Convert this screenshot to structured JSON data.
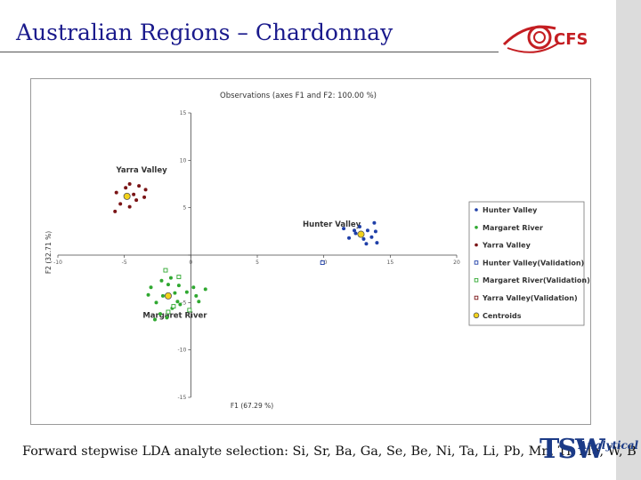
{
  "slide": {
    "title": "Australian Regions – Chardonnay",
    "footer": "Forward stepwise LDA analyte selection: Si, Sr, Ba, Ga, Se, Be, Ni, Ta, Li, Pb, Mn, Ti, Mo, W, B"
  },
  "logos": {
    "cfs_text": "CFS",
    "tsw_main": "TSW",
    "tsw_sub": "Analytical"
  },
  "colors": {
    "title": "#1a1a8c",
    "hunter": "#1f3fa8",
    "margaret": "#2fa830",
    "yarra": "#7a1416",
    "centroid": "#f2d21a",
    "cfs_red": "#c41e22"
  },
  "chart_data": {
    "type": "scatter",
    "title": "Observations (axes F1 and F2: 100.00 %)",
    "xlabel": "F1 (67.29 %)",
    "ylabel": "F2 (32.71 %)",
    "xlim": [
      -10,
      20
    ],
    "ylim": [
      -15,
      15
    ],
    "x_ticks": [
      -10,
      -5,
      0,
      5,
      10,
      15,
      20
    ],
    "y_ticks": [
      15,
      10,
      5,
      0,
      -5,
      -10,
      -15
    ],
    "tick_labels_x": [
      "-10",
      "-5",
      "0",
      "5",
      "10",
      "15",
      "20"
    ],
    "tick_labels_y": [
      "15",
      "10",
      "5",
      "0",
      "-5",
      "-10",
      "-15"
    ],
    "legend_position": "right",
    "grid": false,
    "cluster_labels": [
      {
        "text": "Yarra Valley",
        "x": -3.7,
        "y": 8.7
      },
      {
        "text": "Hunter Valley",
        "x": 10.6,
        "y": 3.0
      },
      {
        "text": "Margaret River",
        "x": -1.2,
        "y": -6.6
      }
    ],
    "series": [
      {
        "name": "Hunter Valley",
        "marker": "dot",
        "color": "#1f3fa8",
        "points": [
          [
            11.5,
            2.8
          ],
          [
            11.9,
            1.8
          ],
          [
            12.4,
            2.3
          ],
          [
            12.7,
            3.0
          ],
          [
            13.0,
            1.7
          ],
          [
            13.3,
            2.6
          ],
          [
            13.6,
            1.9
          ],
          [
            13.8,
            3.4
          ],
          [
            13.9,
            2.5
          ],
          [
            14.0,
            1.3
          ],
          [
            13.2,
            1.2
          ],
          [
            12.3,
            2.6
          ]
        ]
      },
      {
        "name": "Margaret River",
        "marker": "dot",
        "color": "#2fa830",
        "points": [
          [
            -3.0,
            -3.4
          ],
          [
            -3.2,
            -4.2
          ],
          [
            -2.6,
            -5.0
          ],
          [
            -2.1,
            -4.3
          ],
          [
            -1.7,
            -3.1
          ],
          [
            -1.2,
            -4.0
          ],
          [
            -1.0,
            -4.9
          ],
          [
            -1.4,
            -5.6
          ],
          [
            -2.3,
            -6.2
          ],
          [
            -2.7,
            -6.8
          ],
          [
            -1.8,
            -6.6
          ],
          [
            -0.8,
            -5.2
          ],
          [
            0.2,
            -3.4
          ],
          [
            0.4,
            -4.3
          ],
          [
            1.1,
            -3.6
          ],
          [
            0.6,
            -4.9
          ],
          [
            -0.3,
            -3.9
          ],
          [
            -1.9,
            -1.6
          ],
          [
            -2.2,
            -2.7
          ],
          [
            -1.5,
            -2.4
          ],
          [
            -0.9,
            -3.2
          ]
        ]
      },
      {
        "name": "Yarra Valley",
        "marker": "dot",
        "color": "#7a1416",
        "points": [
          [
            -5.6,
            6.6
          ],
          [
            -4.9,
            7.1
          ],
          [
            -4.6,
            7.5
          ],
          [
            -4.3,
            6.4
          ],
          [
            -3.9,
            7.3
          ],
          [
            -3.5,
            6.1
          ],
          [
            -4.1,
            5.8
          ],
          [
            -5.3,
            5.4
          ],
          [
            -4.6,
            5.1
          ],
          [
            -5.7,
            4.6
          ],
          [
            -3.4,
            6.9
          ]
        ]
      },
      {
        "name": "Hunter Valley(Validation)",
        "marker": "square-open",
        "color": "#1f3fa8",
        "points": [
          [
            9.9,
            -0.8
          ]
        ]
      },
      {
        "name": "Margaret River(Validation)",
        "marker": "square-open",
        "color": "#2fa830",
        "points": [
          [
            -1.9,
            -1.6
          ],
          [
            -0.9,
            -2.3
          ],
          [
            -0.1,
            -5.8
          ],
          [
            -1.3,
            -5.4
          ],
          [
            -1.7,
            -6.0
          ]
        ]
      },
      {
        "name": "Yarra Valley(Validation)",
        "marker": "square-open",
        "color": "#7a1416",
        "points": []
      },
      {
        "name": "Centroids",
        "marker": "centroid",
        "color": "#f2d21a",
        "points": [
          [
            -4.8,
            6.2
          ],
          [
            12.8,
            2.2
          ],
          [
            -1.7,
            -4.3
          ]
        ]
      }
    ]
  }
}
